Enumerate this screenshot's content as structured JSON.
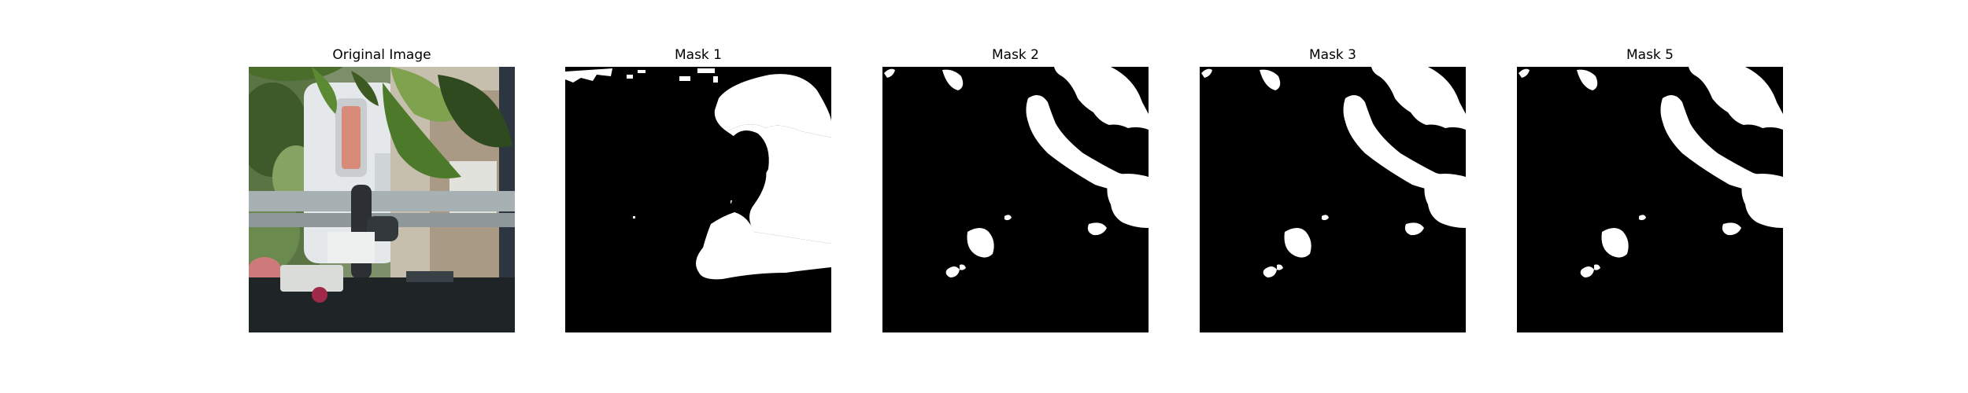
{
  "panels": [
    {
      "title": "Original Image"
    },
    {
      "title": "Mask 1"
    },
    {
      "title": "Mask 2"
    },
    {
      "title": "Mask 3"
    },
    {
      "title": "Mask 5"
    }
  ],
  "colors": {
    "mask_foreground": "#ffffff",
    "mask_background": "#000000",
    "leaf_green": "#4f7a2f",
    "railing_gray": "#9aa4a6",
    "van_white": "#dfe3e4"
  }
}
